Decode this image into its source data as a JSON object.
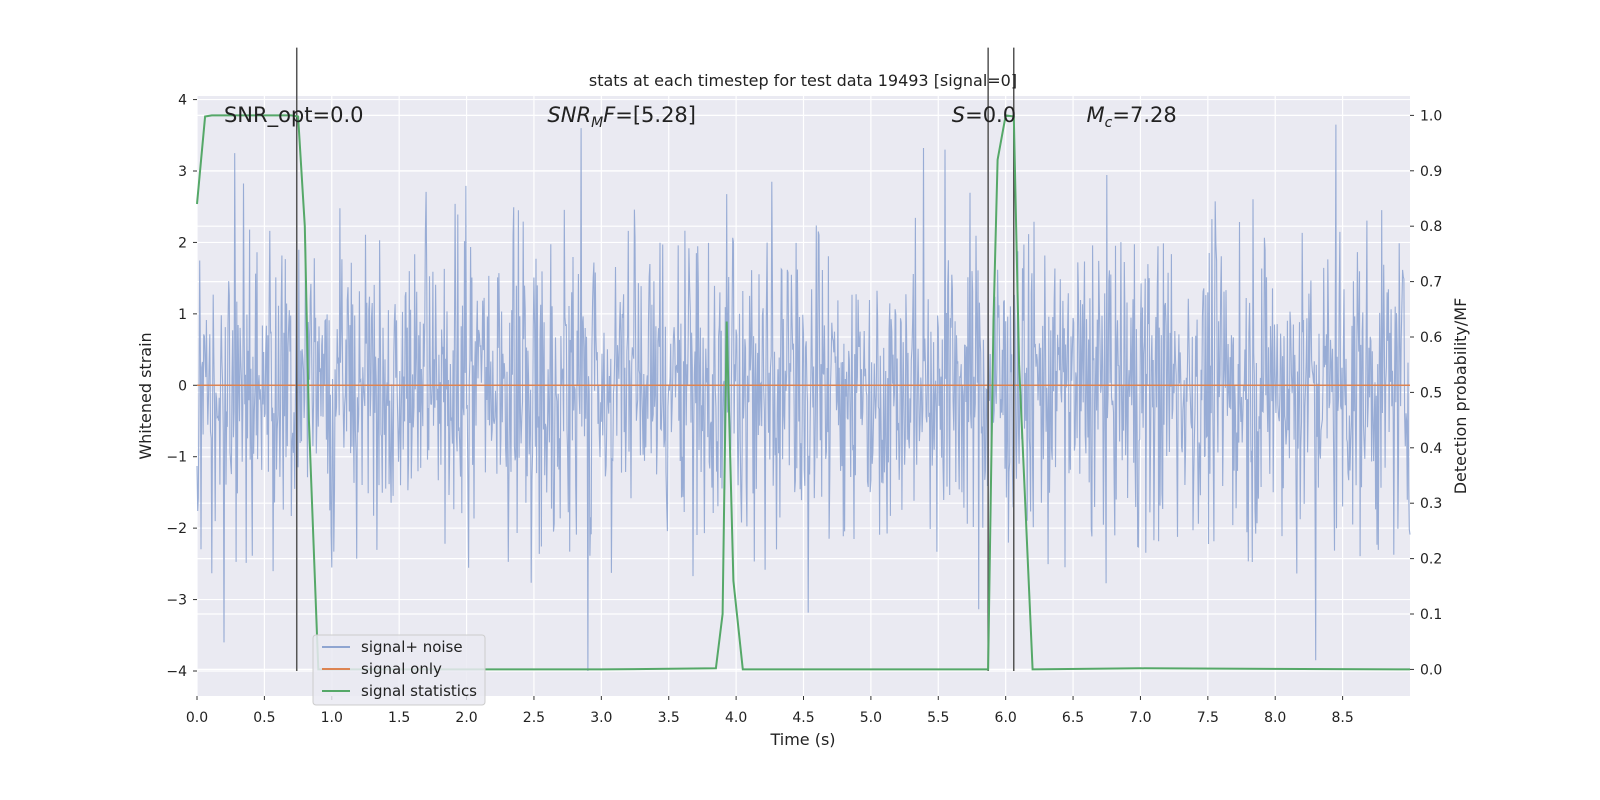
{
  "chart_data": {
    "type": "line",
    "title": "stats at each timestep for test data 19493 [signal=0]",
    "xlabel": "Time (s)",
    "ylabel": "Whitened strain",
    "y2label": "Detection probability/MF",
    "xlim": [
      0.0,
      9.0
    ],
    "ylim": [
      -4.35,
      4.05
    ],
    "y2lim": [
      -0.048,
      1.035
    ],
    "x_ticks": [
      "0.0",
      "0.5",
      "1.0",
      "1.5",
      "2.0",
      "2.5",
      "3.0",
      "3.5",
      "4.0",
      "4.5",
      "5.0",
      "5.5",
      "6.0",
      "6.5",
      "7.0",
      "7.5",
      "8.0",
      "8.5"
    ],
    "y_ticks": [
      "4",
      "3",
      "2",
      "1",
      "0",
      "−1",
      "−2",
      "−3",
      "−4"
    ],
    "y2_ticks": [
      "1.0",
      "0.9",
      "0.8",
      "0.7",
      "0.6",
      "0.5",
      "0.4",
      "0.3",
      "0.2",
      "0.1",
      "0.0"
    ],
    "grid": true,
    "legend_position": "lower-left",
    "series": [
      {
        "name": "signal+ noise",
        "axis": "left",
        "color": "#8fa5d1",
        "noise_envelope": [
          -4.0,
          3.7
        ],
        "notable_peaks": [
          {
            "x": 0.28,
            "y": 3.25
          },
          {
            "x": 2.85,
            "y": 3.6
          },
          {
            "x": 5.55,
            "y": 3.3
          },
          {
            "x": 8.45,
            "y": 3.65
          }
        ],
        "notable_troughs": [
          {
            "x": 0.2,
            "y": -3.6
          },
          {
            "x": 2.9,
            "y": -4.0
          },
          {
            "x": 8.3,
            "y": -3.85
          }
        ]
      },
      {
        "name": "signal only",
        "axis": "left",
        "color": "#dd8452",
        "x": [
          0.0,
          9.0
        ],
        "y": [
          0.0,
          0.0
        ]
      },
      {
        "name": "signal statistics",
        "axis": "right",
        "color": "#55a868",
        "x": [
          0.0,
          0.06,
          0.11,
          0.3,
          0.5,
          0.7,
          0.75,
          0.8,
          0.83,
          0.9,
          1.0,
          2.0,
          3.0,
          3.85,
          3.9,
          3.93,
          3.98,
          4.05,
          5.0,
          5.87,
          5.91,
          5.94,
          6.0,
          6.06,
          6.1,
          6.2,
          7.0,
          9.0
        ],
        "y": [
          0.84,
          0.998,
          1.0,
          1.0,
          1.0,
          1.0,
          0.998,
          0.8,
          0.45,
          0.0,
          0.0,
          0.0,
          0.0,
          0.002,
          0.1,
          0.628,
          0.16,
          0.0,
          0.0,
          0.0,
          0.63,
          0.92,
          1.0,
          0.998,
          0.55,
          0.0,
          0.002,
          0.0
        ]
      }
    ],
    "vertical_lines": [
      {
        "x": 0.74,
        "color": "#555555"
      },
      {
        "x": 5.87,
        "color": "#555555"
      },
      {
        "x": 6.06,
        "color": "#555555"
      }
    ],
    "annotations": [
      {
        "label": "SNR_opt=0.0",
        "x": 0.2,
        "y": 3.8
      },
      {
        "label": "SNR_MF=[5.28]",
        "x": 2.6,
        "y": 3.8
      },
      {
        "label": "S=0.0",
        "x": 5.6,
        "y": 3.8
      },
      {
        "label": "M_c=7.28",
        "x": 6.6,
        "y": 3.8
      }
    ]
  }
}
